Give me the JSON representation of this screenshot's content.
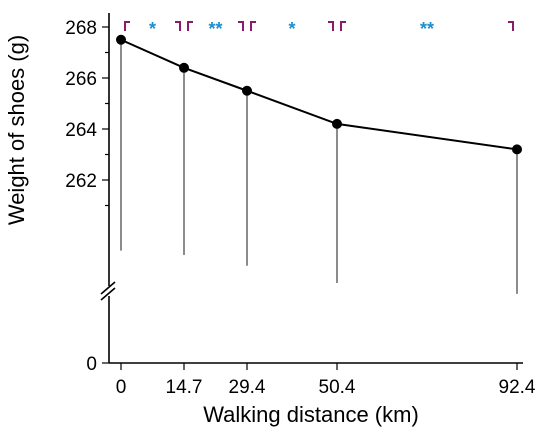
{
  "chart_data": {
    "type": "line",
    "xlabel": "Walking distance (km)",
    "ylabel": "Weight of shoes (g)",
    "x": [
      0,
      14.7,
      29.4,
      50.4,
      92.4
    ],
    "x_tick_labels": [
      "0",
      "14.7",
      "29.4",
      "50.4",
      "92.4"
    ],
    "y_tick_labels": [
      "262",
      "264",
      "266",
      "268"
    ],
    "y_zero_label": "0",
    "y_axis_break": true,
    "series": [
      {
        "values": [
          267.5,
          266.4,
          265.5,
          264.2,
          263.2
        ],
        "error_upper": [
          267.5,
          266.4,
          265.5,
          264.2,
          263.2
        ],
        "error_lower": [
          257.5,
          257.1,
          256.1,
          254.5,
          253.5
        ]
      }
    ],
    "significance": [
      {
        "from": 0,
        "to": 14.7,
        "label": "*"
      },
      {
        "from": 14.7,
        "to": 29.4,
        "label": "**"
      },
      {
        "from": 29.4,
        "to": 50.4,
        "label": "*"
      },
      {
        "from": 50.4,
        "to": 92.4,
        "label": "**"
      }
    ],
    "colors": {
      "line": "#000000",
      "bracket": "#8b1a6b",
      "significance_text": "#1a8fd0"
    }
  }
}
